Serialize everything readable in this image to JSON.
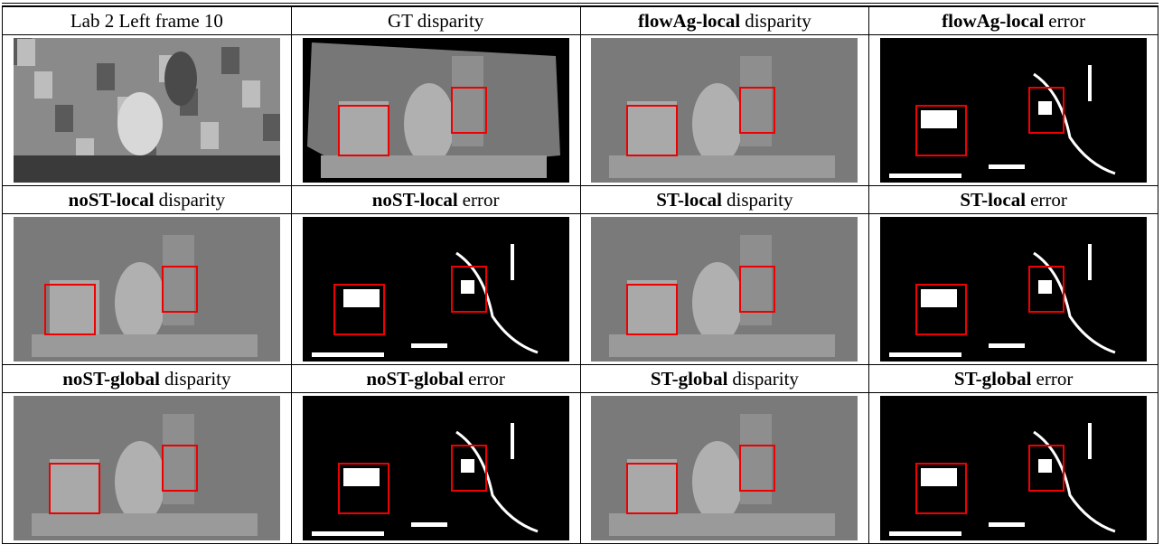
{
  "table": {
    "rows": [
      [
        {
          "text": "Lab 2 Left frame 10"
        },
        {
          "text": "GT disparity"
        },
        {
          "bold": "flowAg-local",
          "text": "disparity"
        },
        {
          "bold": "flowAg-local",
          "text": "error"
        }
      ],
      [
        {
          "bold": "noST-local",
          "text": "disparity"
        },
        {
          "bold": "noST-local",
          "text": "error"
        },
        {
          "bold": "ST-local",
          "text": "disparity"
        },
        {
          "bold": "ST-local",
          "text": "error"
        }
      ],
      [
        {
          "bold": "noST-global",
          "text": "disparity"
        },
        {
          "bold": "noST-global",
          "text": "error"
        },
        {
          "bold": "ST-global",
          "text": "disparity"
        },
        {
          "bold": "ST-global",
          "text": "error"
        }
      ]
    ]
  }
}
